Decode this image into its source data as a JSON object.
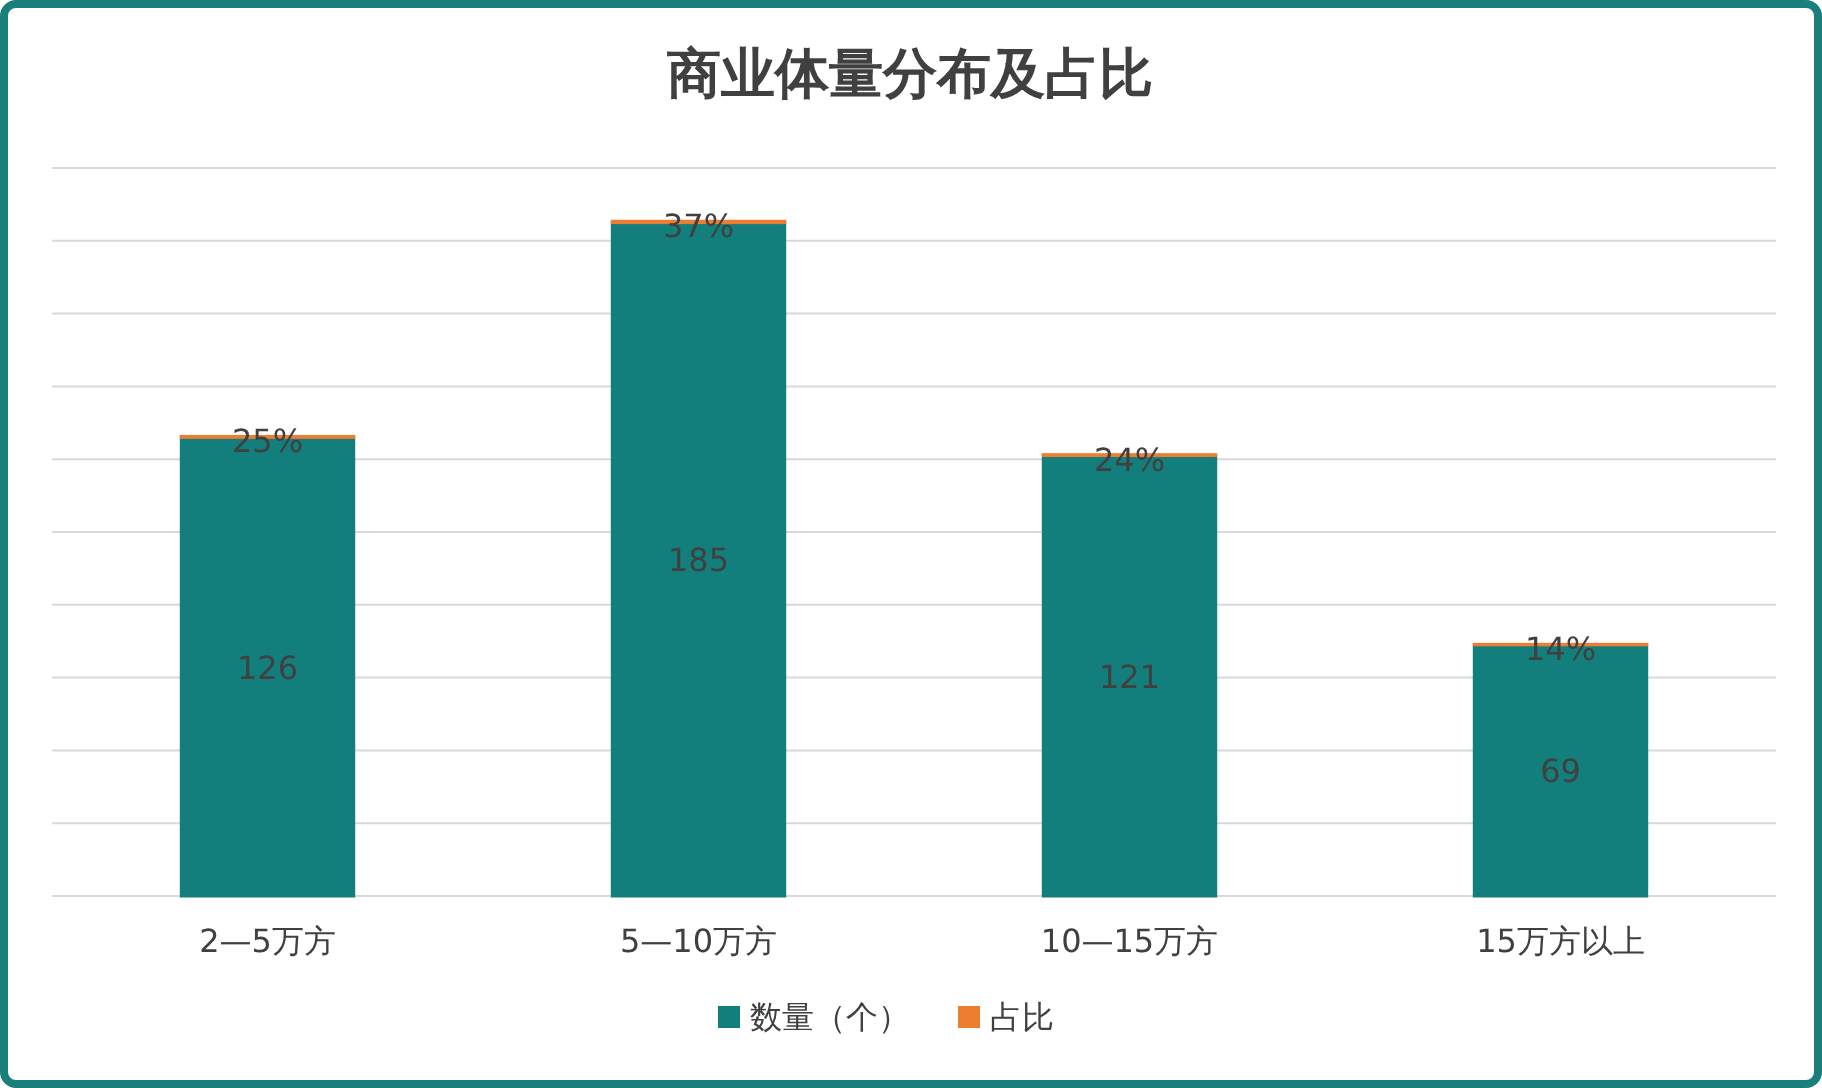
{
  "chart_data": {
    "type": "bar",
    "title": "商业体量分布及占比",
    "categories": [
      "2—5万方",
      "5—10万方",
      "10—15万方",
      "15万方以上"
    ],
    "stacked": true,
    "series": [
      {
        "name": "数量（个）",
        "color": "#137f7c",
        "values": [
          126,
          185,
          121,
          69
        ],
        "value_labels": [
          "126",
          "185",
          "121",
          "69"
        ]
      },
      {
        "name": "占比",
        "color": "#ed7d31",
        "values": [
          0.25,
          0.37,
          0.24,
          0.14
        ],
        "value_labels": [
          "25%",
          "37%",
          "24%",
          "14%"
        ]
      }
    ],
    "ylim": [
      0,
      200
    ],
    "yticks": [
      {
        "value": 0,
        "label": null
      },
      {
        "value": 20,
        "label": null
      },
      {
        "value": 40,
        "label": null
      },
      {
        "value": 60,
        "label": null
      },
      {
        "value": 80,
        "label": null
      },
      {
        "value": 100,
        "label": null
      },
      {
        "value": 120,
        "label": null
      },
      {
        "value": 140,
        "label": null
      },
      {
        "value": 160,
        "label": null
      },
      {
        "value": 180,
        "label": null
      },
      {
        "value": 200,
        "label": null
      }
    ],
    "grid": "y",
    "tick_labels": "x",
    "legend": "bottom"
  }
}
